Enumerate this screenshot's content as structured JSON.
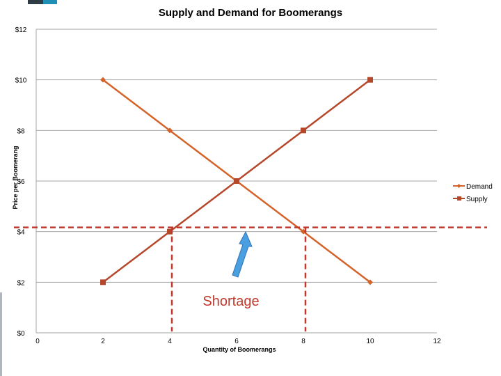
{
  "chart_data": {
    "type": "line",
    "title": "Supply and Demand for Boomerangs",
    "xlabel": "Quantity of Boomerangs",
    "ylabel": "Price per Boomerang",
    "xlim": [
      0,
      12
    ],
    "ylim": [
      0,
      12
    ],
    "x_ticks": [
      "0",
      "2",
      "4",
      "6",
      "8",
      "10",
      "12"
    ],
    "y_ticks": [
      "$0",
      "$2",
      "$4",
      "$6",
      "$8",
      "$10",
      "$12"
    ],
    "grid": true,
    "legend_position": "right",
    "series": [
      {
        "name": "Demand",
        "color": "#d4632a",
        "marker": "diamond",
        "points": [
          [
            2,
            10
          ],
          [
            4,
            8
          ],
          [
            6,
            6
          ],
          [
            8,
            4
          ],
          [
            10,
            2
          ]
        ]
      },
      {
        "name": "Supply",
        "color": "#b5472a",
        "marker": "square",
        "points": [
          [
            2,
            2
          ],
          [
            4,
            4
          ],
          [
            6,
            6
          ],
          [
            8,
            8
          ],
          [
            10,
            10
          ]
        ]
      }
    ],
    "annotations": {
      "label": "Shortage",
      "color": "#c0392b",
      "price_line": 4,
      "quantity_markers": [
        4,
        8
      ],
      "arrow_color": "#4a9fe0"
    }
  }
}
